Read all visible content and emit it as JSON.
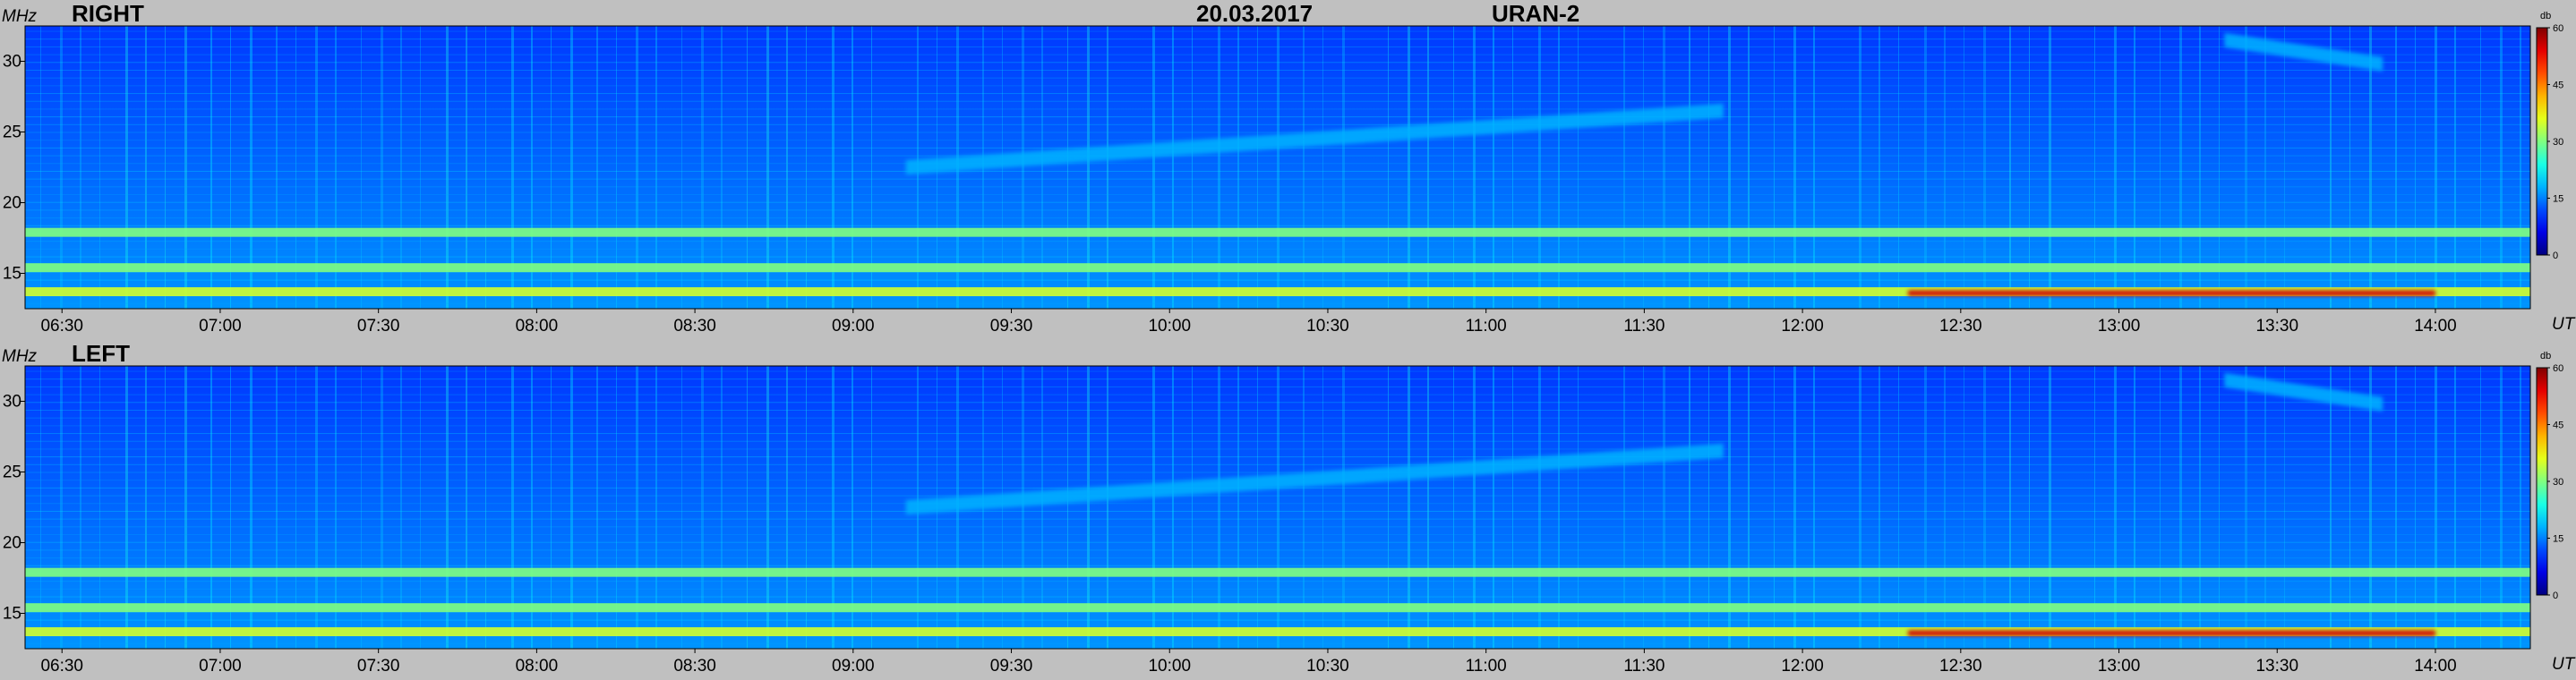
{
  "header": {
    "date": "20.03.2017",
    "instrument": "URAN-2"
  },
  "panels": [
    {
      "label": "RIGHT",
      "freq_unit": "MHz",
      "time_unit": "UT",
      "colorbar_unit": "db"
    },
    {
      "label": "LEFT",
      "freq_unit": "MHz",
      "time_unit": "UT",
      "colorbar_unit": "db"
    }
  ],
  "chart_data": {
    "type": "heatmap",
    "title": "20.03.2017 URAN-2",
    "xlabel": "UT",
    "ylabel": "MHz",
    "x_ticks": [
      "06:30",
      "07:00",
      "07:30",
      "08:00",
      "08:30",
      "09:00",
      "09:30",
      "10:00",
      "10:30",
      "11:00",
      "11:30",
      "12:00",
      "12:30",
      "13:00",
      "13:30",
      "14:00"
    ],
    "y_ticks": [
      15,
      20,
      25,
      30
    ],
    "ylim": [
      12.5,
      32.5
    ],
    "colorbar": {
      "label": "db",
      "ticks": [
        0,
        15,
        30,
        45,
        60
      ],
      "range": [
        0,
        60
      ],
      "colormap": "jet"
    },
    "panels": [
      "RIGHT",
      "LEFT"
    ],
    "features": [
      {
        "name": "narrowband interference line",
        "freq_mhz": 17.9,
        "level_db": 30
      },
      {
        "name": "narrowband interference line",
        "freq_mhz": 15.4,
        "level_db": 30
      },
      {
        "name": "low-frequency interference band",
        "freq_mhz": 13.7,
        "level_db": 35
      },
      {
        "name": "drifting emission",
        "time_start": "09:10",
        "time_end": "11:45",
        "freq_start_mhz": 22.5,
        "freq_end_mhz": 26.5,
        "level_db": 18
      },
      {
        "name": "drifting emission",
        "time_start": "13:20",
        "time_end": "13:50",
        "freq_start_mhz": 31.5,
        "freq_end_mhz": 29.8,
        "level_db": 18
      },
      {
        "name": "intense low-frequency band",
        "time_start": "12:20",
        "time_end": "14:00",
        "freq_mhz": 13.6,
        "level_db": 55
      }
    ]
  }
}
